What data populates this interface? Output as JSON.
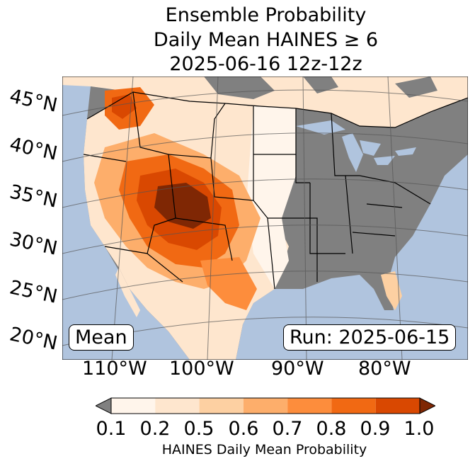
{
  "title": {
    "line1": "Ensemble Probability",
    "line2": "Daily Mean HAINES ≥ 6",
    "line3": "2025-06-16 12z-12z"
  },
  "map": {
    "lat_labels": [
      "45°N",
      "40°N",
      "35°N",
      "30°N",
      "25°N",
      "20°N"
    ],
    "lon_labels": [
      "110°W",
      "100°W",
      "90°W",
      "80°W"
    ],
    "mean_box": "Mean",
    "run_box": "Run: 2025-06-15",
    "colors": {
      "ocean": "#b0c4de",
      "no_data_land": "#808080",
      "border": "#000000",
      "graticule": "#555555"
    }
  },
  "colorbar": {
    "ticks": [
      "0.1",
      "0.2",
      "0.5",
      "0.6",
      "0.7",
      "0.8",
      "0.9",
      "1.0"
    ],
    "label": "HAINES Daily Mean Probability",
    "under_color": "#808080",
    "over_color": "#7f2704",
    "bin_colors": [
      "#fff5eb",
      "#fee6ce",
      "#fdd0a2",
      "#fdae6b",
      "#fd8d3c",
      "#f16913",
      "#d94801"
    ]
  }
}
